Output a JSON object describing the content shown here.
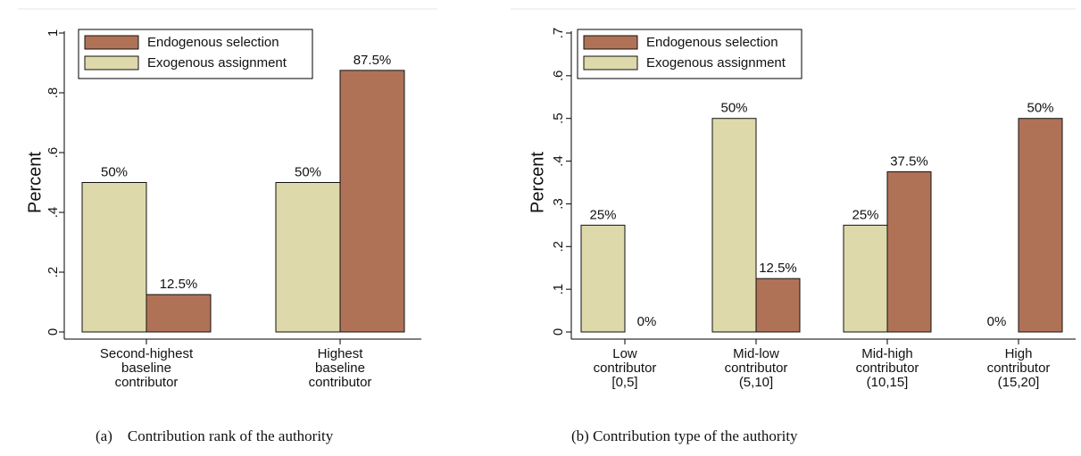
{
  "chart_data": [
    {
      "type": "bar",
      "y_label": "Percent",
      "caption": "(a)    Contribution rank of the authority",
      "categories": [
        [
          "Second-highest",
          "baseline",
          "contributor"
        ],
        [
          "Highest",
          "baseline",
          "contributor"
        ]
      ],
      "series": [
        {
          "name": "Endogenous selection",
          "color": "#b07256",
          "values": [
            0.125,
            0.875
          ],
          "value_labels": [
            "12.5%",
            "87.5%"
          ]
        },
        {
          "name": "Exogenous assignment",
          "color": "#ddd9aa",
          "values": [
            0.5,
            0.5
          ],
          "value_labels": [
            "50%",
            "50%"
          ]
        }
      ],
      "ylim": [
        0,
        1
      ],
      "yticks": [
        0,
        {
          "value": 0.2,
          "label": ".2"
        },
        {
          "value": 0.4,
          "label": ".4"
        },
        {
          "value": 0.6,
          "label": ".6"
        },
        {
          "value": 0.8,
          "label": ".8"
        },
        1
      ]
    },
    {
      "type": "bar",
      "y_label": "Percent",
      "caption": "(b) Contribution type of the authority",
      "categories": [
        [
          "Low",
          "contributor",
          "[0,5]"
        ],
        [
          "Mid-low",
          "contributor",
          "(5,10]"
        ],
        [
          "Mid-high",
          "contributor",
          "(10,15]"
        ],
        [
          "High",
          "contributor",
          "(15,20]"
        ]
      ],
      "series": [
        {
          "name": "Endogenous selection",
          "color": "#b07256",
          "values": [
            0,
            0.125,
            0.375,
            0.5
          ],
          "value_labels": [
            "0%",
            "12.5%",
            "37.5%",
            "50%"
          ]
        },
        {
          "name": "Exogenous assignment",
          "color": "#ddd9aa",
          "values": [
            0.25,
            0.5,
            0.25,
            0
          ],
          "value_labels": [
            "25%",
            "50%",
            "25%",
            "0%"
          ]
        }
      ],
      "ylim": [
        0,
        0.7
      ],
      "yticks": [
        0,
        {
          "value": 0.1,
          "label": ".1"
        },
        {
          "value": 0.2,
          "label": ".2"
        },
        {
          "value": 0.3,
          "label": ".3"
        },
        {
          "value": 0.4,
          "label": ".4"
        },
        {
          "value": 0.5,
          "label": ".5"
        },
        {
          "value": 0.6,
          "label": ".6"
        },
        {
          "value": 0.7,
          "label": ".7"
        }
      ]
    }
  ]
}
